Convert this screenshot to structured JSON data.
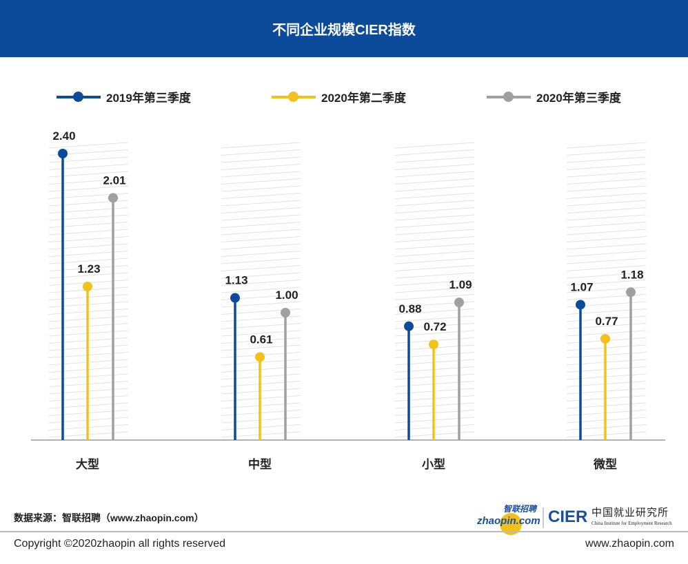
{
  "title": "不同企业规模CIER指数",
  "chart_data": {
    "type": "lollipop",
    "title": "不同企业规模CIER指数",
    "categories": [
      "大型",
      "中型",
      "小型",
      "微型"
    ],
    "series": [
      {
        "name": "2019年第三季度",
        "color": "#0d4a9a",
        "values": [
          2.4,
          1.13,
          0.88,
          1.07
        ]
      },
      {
        "name": "2020年第二季度",
        "color": "#f2c21b",
        "values": [
          1.23,
          0.61,
          0.72,
          0.77
        ]
      },
      {
        "name": "2020年第三季度",
        "color": "#a0a0a0",
        "values": [
          2.01,
          1.0,
          1.09,
          1.18
        ]
      }
    ],
    "legend": "top",
    "data_labels": true
  },
  "footer": {
    "source": "数据来源：智联招聘（www.zhaopin.com）",
    "copyright": "Copyright ©2020zhaopin all rights reserved",
    "url": "www.zhaopin.com",
    "logo_zhaopin_cn": "智联招聘",
    "logo_zhaopin_en": "zhaopin.com",
    "logo_cier": "CIER",
    "logo_cier_cn": "中国就业研究所",
    "logo_cier_en": "China Institute for Employment Research"
  }
}
